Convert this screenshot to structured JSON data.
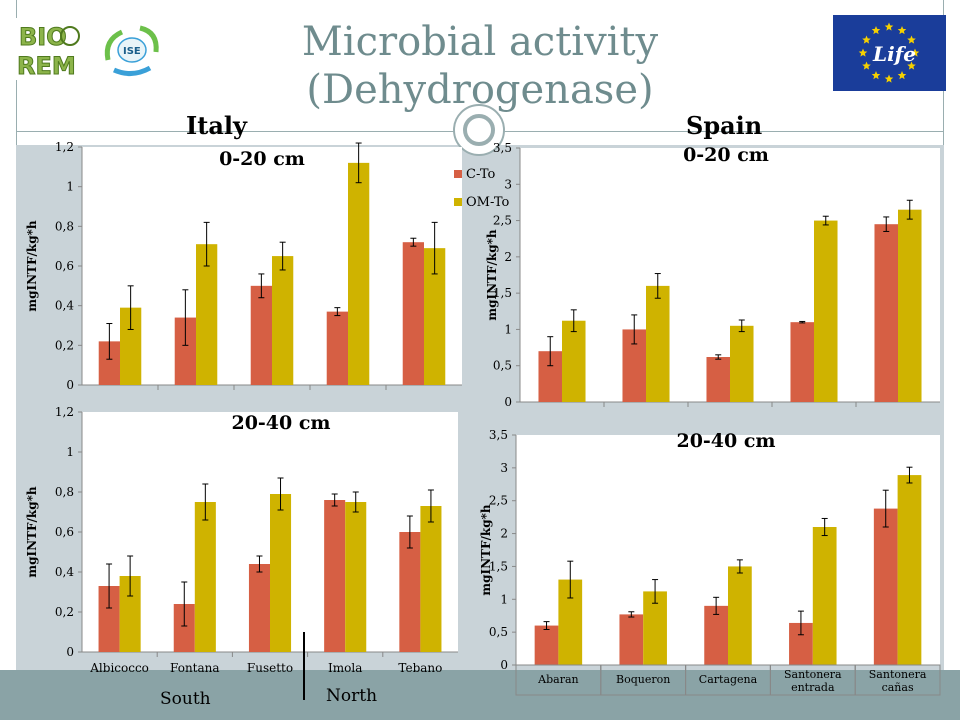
{
  "slide": {
    "title_line1": "Microbial activity",
    "title_line2": "(Dehydrogenase)",
    "left_country": "Italy",
    "right_country": "Spain",
    "region_south": "South",
    "region_north": "North",
    "logos": {
      "bioremed_text_1": "BIO",
      "bioremed_text_2": "REM",
      "ise_text": "ISE",
      "life_text": "Life"
    }
  },
  "colors": {
    "c_to": "#d65f44",
    "om_to": "#cfb300",
    "title": "#6f8c8e",
    "panel": "#c9d3d8"
  },
  "chart_data": [
    {
      "id": "italy-0-20",
      "type": "bar",
      "title": "0-20 cm",
      "xlabel": "",
      "ylabel": "mgINTF/kg*h",
      "ylim": [
        0,
        1.2
      ],
      "yticks": [
        "0",
        "0,2",
        "0,4",
        "0,6",
        "0,8",
        "1",
        "1,2"
      ],
      "categories": [
        "",
        "",
        "",
        "",
        ""
      ],
      "series": [
        {
          "name": "C-To",
          "color": "#d65f44",
          "values": [
            0.22,
            0.34,
            0.5,
            0.37,
            0.72
          ],
          "errors": [
            0.09,
            0.14,
            0.06,
            0.02,
            0.02
          ]
        },
        {
          "name": "OM-To",
          "color": "#cfb300",
          "values": [
            0.39,
            0.71,
            0.65,
            1.12,
            0.69
          ],
          "errors": [
            0.11,
            0.11,
            0.07,
            0.1,
            0.13
          ]
        }
      ],
      "legend": "right"
    },
    {
      "id": "italy-20-40",
      "type": "bar",
      "title": "20-40 cm",
      "xlabel": "",
      "ylabel": "mgINTF/kg*h",
      "ylim": [
        0,
        1.2
      ],
      "yticks": [
        "0",
        "0,2",
        "0,4",
        "0,6",
        "0,8",
        "1",
        "1,2"
      ],
      "categories": [
        "Albicocco",
        "Fontana",
        "Fusetto",
        "Imola",
        "Tebano"
      ],
      "series": [
        {
          "name": "C-To",
          "color": "#d65f44",
          "values": [
            0.33,
            0.24,
            0.44,
            0.76,
            0.6
          ],
          "errors": [
            0.11,
            0.11,
            0.04,
            0.03,
            0.08
          ]
        },
        {
          "name": "OM-To",
          "color": "#cfb300",
          "values": [
            0.38,
            0.75,
            0.79,
            0.75,
            0.73
          ],
          "errors": [
            0.1,
            0.09,
            0.08,
            0.05,
            0.08
          ]
        }
      ]
    },
    {
      "id": "spain-0-20",
      "type": "bar",
      "title": "0-20 cm",
      "xlabel": "",
      "ylabel": "mgINTF/kg*h",
      "ylim": [
        0,
        3.5
      ],
      "yticks": [
        "0",
        "0,5",
        "1",
        "1,5",
        "2",
        "2,5",
        "3",
        "3,5"
      ],
      "categories": [
        "",
        "",
        "",
        "",
        ""
      ],
      "series": [
        {
          "name": "C-To",
          "color": "#d65f44",
          "values": [
            0.7,
            1.0,
            0.62,
            1.1,
            2.45
          ],
          "errors": [
            0.2,
            0.2,
            0.03,
            0.01,
            0.1
          ]
        },
        {
          "name": "OM-To",
          "color": "#cfb300",
          "values": [
            1.12,
            1.6,
            1.05,
            2.5,
            2.65
          ],
          "errors": [
            0.15,
            0.17,
            0.08,
            0.06,
            0.13
          ]
        }
      ]
    },
    {
      "id": "spain-20-40",
      "type": "bar",
      "title": "20-40 cm",
      "xlabel": "",
      "ylabel": "mgINTF/kg*h",
      "ylim": [
        0,
        3.5
      ],
      "yticks": [
        "0",
        "0,5",
        "1",
        "1,5",
        "2",
        "2,5",
        "3",
        "3,5"
      ],
      "categories": [
        "Abaran",
        "Boqueron",
        "Cartagena",
        "Santonera entrada",
        "Santonera cañas"
      ],
      "series": [
        {
          "name": "C-To",
          "color": "#d65f44",
          "values": [
            0.6,
            0.77,
            0.9,
            0.64,
            2.38
          ],
          "errors": [
            0.06,
            0.04,
            0.13,
            0.18,
            0.28
          ]
        },
        {
          "name": "OM-To",
          "color": "#cfb300",
          "values": [
            1.3,
            1.12,
            1.5,
            2.1,
            2.89
          ],
          "errors": [
            0.28,
            0.18,
            0.1,
            0.13,
            0.12
          ]
        }
      ]
    }
  ]
}
